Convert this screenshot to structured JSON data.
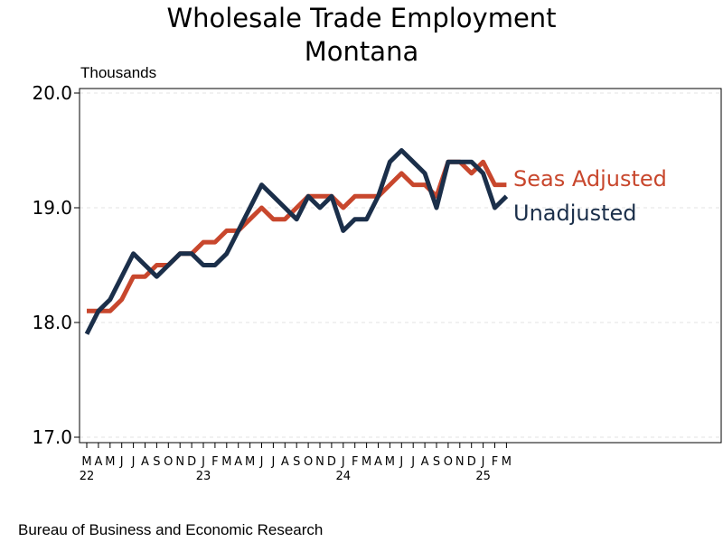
{
  "chart_data": {
    "type": "line",
    "title": "Wholesale Trade Employment",
    "subtitle": "Montana",
    "ylabel": "Thousands",
    "ylim": [
      17.0,
      20.0
    ],
    "y_ticks": [
      "17.0",
      "18.0",
      "19.0",
      "20.0"
    ],
    "y_tick_values": [
      17.0,
      18.0,
      19.0,
      20.0
    ],
    "grid": "horizontal-dashed",
    "month_labels": [
      "M",
      "A",
      "M",
      "J",
      "J",
      "A",
      "S",
      "O",
      "N",
      "D",
      "J",
      "F",
      "M",
      "A",
      "M",
      "J",
      "J",
      "A",
      "S",
      "O",
      "N",
      "D",
      "J",
      "F",
      "M",
      "A",
      "M",
      "J",
      "J",
      "A",
      "S",
      "O",
      "N",
      "D",
      "J",
      "F",
      "M"
    ],
    "year_labels": [
      {
        "index": 0,
        "label": "22"
      },
      {
        "index": 10,
        "label": "23"
      },
      {
        "index": 22,
        "label": "24"
      },
      {
        "index": 34,
        "label": "25"
      }
    ],
    "series": [
      {
        "name": "Seas Adjusted",
        "color": "#c8472d",
        "values": [
          18.1,
          18.1,
          18.1,
          18.2,
          18.4,
          18.4,
          18.5,
          18.5,
          18.6,
          18.6,
          18.7,
          18.7,
          18.8,
          18.8,
          18.9,
          19.0,
          18.9,
          18.9,
          19.0,
          19.1,
          19.1,
          19.1,
          19.0,
          19.1,
          19.1,
          19.1,
          19.2,
          19.3,
          19.2,
          19.2,
          19.1,
          19.4,
          19.4,
          19.3,
          19.4,
          19.2,
          19.2
        ]
      },
      {
        "name": "Unadjusted",
        "color": "#1b2f4a",
        "values": [
          17.9,
          18.1,
          18.2,
          18.4,
          18.6,
          18.5,
          18.4,
          18.5,
          18.6,
          18.6,
          18.5,
          18.5,
          18.6,
          18.8,
          19.0,
          19.2,
          19.1,
          19.0,
          18.9,
          19.1,
          19.0,
          19.1,
          18.8,
          18.9,
          18.9,
          19.1,
          19.4,
          19.5,
          19.4,
          19.3,
          19.0,
          19.4,
          19.4,
          19.4,
          19.3,
          19.0,
          19.1
        ]
      }
    ]
  },
  "footer": "Bureau of Business and Economic Research"
}
